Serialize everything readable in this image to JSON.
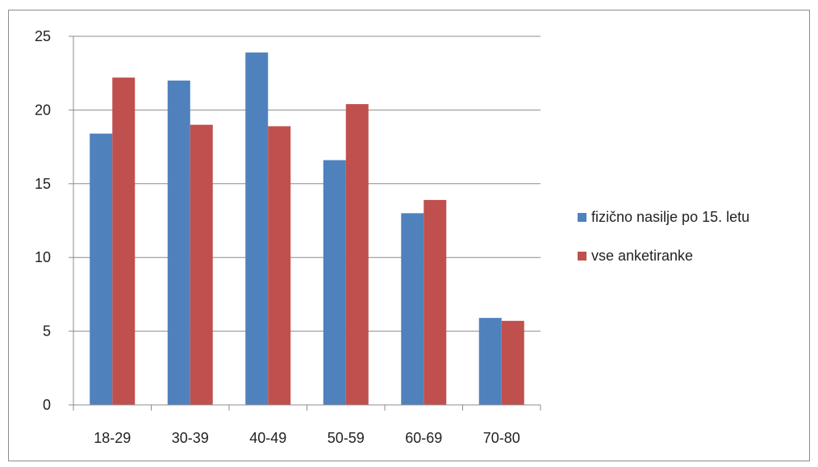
{
  "chart_data": {
    "type": "bar",
    "categories": [
      "18-29",
      "30-39",
      "40-49",
      "50-59",
      "60-69",
      "70-80"
    ],
    "series": [
      {
        "name": "fizično nasilje po 15. letu",
        "values": [
          18.4,
          22.0,
          23.9,
          16.6,
          13.0,
          5.9
        ],
        "color": "#4f81bd"
      },
      {
        "name": "vse anketiranke",
        "values": [
          22.2,
          19.0,
          18.9,
          20.4,
          13.9,
          5.7
        ],
        "color": "#c0504d"
      }
    ],
    "yticks": [
      "0",
      "5",
      "10",
      "15",
      "20",
      "25"
    ],
    "ylim": [
      0,
      25
    ],
    "grid": true,
    "legend_position": "right"
  }
}
